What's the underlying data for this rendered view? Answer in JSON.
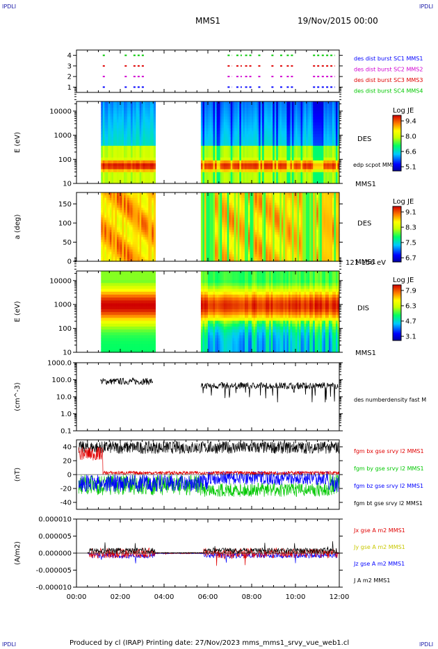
{
  "corners": {
    "tl": "IPDLI",
    "tr": "IPDLI",
    "bl": "IPDLI",
    "br": "IPDLI"
  },
  "header": {
    "spacecraft": "MMS1",
    "date": "19/Nov/2015 00:00"
  },
  "footer": "Produced by cl (IRAP)   Printing date: 27/Nov/2023   mms_mms1_srvy_vue_web1.cl",
  "colors": {
    "black": "#000000",
    "red": "#e00000",
    "green": "#00c800",
    "blue": "#0000ff",
    "magenta": "#d000d0"
  },
  "chart_data": [
    {
      "type": "scatter",
      "id": "burst",
      "y_ticks": [
        "1",
        "2",
        "3",
        "4"
      ],
      "ylim": [
        0.5,
        4.5
      ],
      "x_range_hours": [
        0,
        12
      ],
      "legend": [
        {
          "text": "des dist burst SC1 MMS1",
          "color": "#0000ff"
        },
        {
          "text": "des dist burst SC2 MMS2",
          "color": "#d000d0"
        },
        {
          "text": "des dist burst SC3 MMS3",
          "color": "#e00000"
        },
        {
          "text": "des dist burst SC4 MMS4",
          "color": "#00c800"
        }
      ],
      "burst_intervals_hours": [
        [
          1.2,
          1.3
        ],
        [
          2.2,
          2.35
        ],
        [
          2.6,
          3.1
        ],
        [
          6.9,
          7.1
        ],
        [
          7.3,
          7.55
        ],
        [
          7.7,
          8.0
        ],
        [
          8.3,
          8.4
        ],
        [
          8.9,
          9.0
        ],
        [
          9.3,
          9.4
        ],
        [
          9.6,
          9.9
        ],
        [
          10.8,
          11.1
        ],
        [
          11.2,
          11.3
        ],
        [
          11.4,
          11.8
        ]
      ]
    },
    {
      "type": "heatmap",
      "id": "des_energy",
      "ylabel": "E (eV)",
      "y_ticks": [
        "10",
        "100",
        "1000",
        "10000"
      ],
      "scale": "log",
      "label": "DES",
      "sub_label": "edp scpot MMS1",
      "sc_label": "MMS1",
      "colorbar": {
        "title": "Log JE",
        "ticks": [
          "9.4",
          "8.0",
          "6.6",
          "5.1"
        ]
      },
      "data_gaps_hours": [
        [
          0,
          1.1
        ],
        [
          3.6,
          5.7
        ]
      ]
    },
    {
      "type": "heatmap",
      "id": "des_pitch",
      "ylabel": "a (deg)",
      "y_ticks": [
        "0",
        "50",
        "100",
        "150"
      ],
      "ylim": [
        0,
        180
      ],
      "label": "DES",
      "sc_label": "MMS1",
      "energy_label": "121-156 eV",
      "colorbar": {
        "title": "Log JE",
        "ticks": [
          "9.1",
          "8.3",
          "7.5",
          "6.7"
        ]
      },
      "data_gaps_hours": [
        [
          0,
          1.1
        ],
        [
          3.6,
          5.7
        ]
      ]
    },
    {
      "type": "heatmap",
      "id": "dis_energy",
      "ylabel": "E (eV)",
      "y_ticks": [
        "10",
        "100",
        "1000",
        "10000"
      ],
      "scale": "log",
      "label": "DIS",
      "sc_label": "MMS1",
      "colorbar": {
        "title": "Log JE",
        "ticks": [
          "7.9",
          "6.3",
          "4.7",
          "3.1"
        ]
      },
      "data_gaps_hours": [
        [
          0,
          1.1
        ],
        [
          3.6,
          5.7
        ]
      ]
    },
    {
      "type": "line",
      "id": "density",
      "ylabel": "(cm^-3)",
      "y_ticks": [
        "0.1",
        "1.0",
        "10.0",
        "100.0",
        "1000.0"
      ],
      "scale": "log",
      "legend": [
        {
          "text": "des numberdensity fast M",
          "color": "#000000"
        }
      ],
      "segments_hours": [
        [
          1.1,
          3.5
        ],
        [
          5.7,
          11.95
        ]
      ],
      "typical_value": 45
    },
    {
      "type": "line",
      "id": "bfield",
      "ylabel": "(nT)",
      "y_ticks": [
        "-40",
        "-20",
        "0",
        "20",
        "40"
      ],
      "ylim": [
        -50,
        50
      ],
      "legend": [
        {
          "text": "fgm bx gse srvy l2 MMS1",
          "color": "#e00000"
        },
        {
          "text": "fgm by gse srvy l2 MMS1",
          "color": "#00c800"
        },
        {
          "text": "fgm bz gse srvy l2 MMS1",
          "color": "#0000ff"
        },
        {
          "text": "fgm bt gse srvy l2 MMS1",
          "color": "#000000"
        }
      ]
    },
    {
      "type": "line",
      "id": "current",
      "ylabel": "(A/m2)",
      "y_ticks": [
        "-0.000010",
        "-0.000005",
        "0.000000",
        "0.000005",
        "0.000010"
      ],
      "ylim": [
        -1e-05,
        1e-05
      ],
      "legend": [
        {
          "text": "Jx gse A m2 MMS1",
          "color": "#e00000"
        },
        {
          "text": "Jy gse A m2 MMS1",
          "color": "#c8c800"
        },
        {
          "text": "Jz gse A m2 MMS1",
          "color": "#0000ff"
        },
        {
          "text": "J A m2 MMS1",
          "color": "#000000"
        }
      ]
    }
  ],
  "x_axis": {
    "ticks": [
      "00:00",
      "02:00",
      "04:00",
      "06:00",
      "08:00",
      "10:00",
      "12:00"
    ],
    "range_hours": [
      0,
      12
    ]
  }
}
